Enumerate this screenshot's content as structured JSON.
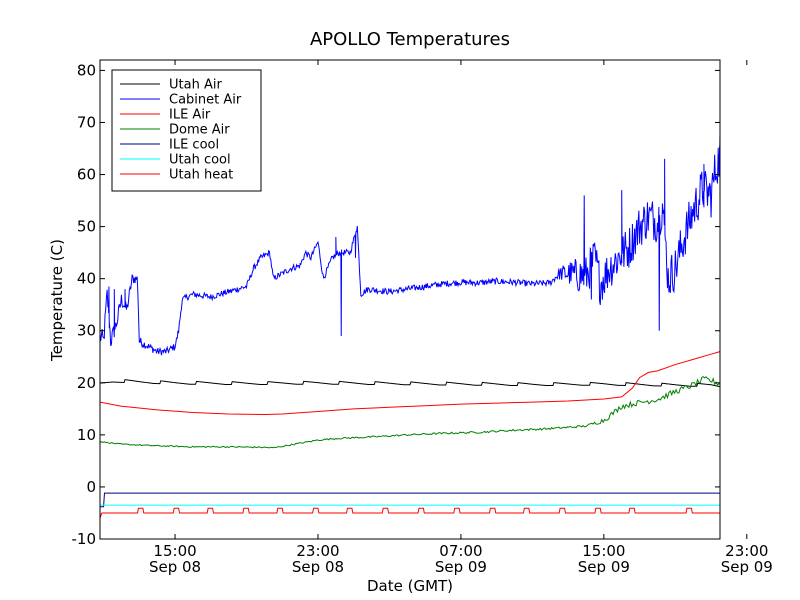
{
  "chart_data": {
    "type": "line",
    "title": "APOLLO Temperatures",
    "xlabel": "Date (GMT)",
    "ylabel": "Temperature (C)",
    "ylim": [
      -10,
      82
    ],
    "xlim_hours": [
      10.8,
      45.5
    ],
    "x_unit": "hours since 2012-09-08 00:00 GMT",
    "grid": false,
    "legend_position": "top-left",
    "y_ticks": [
      -10,
      0,
      10,
      20,
      30,
      40,
      50,
      60,
      70,
      80
    ],
    "x_ticks": [
      {
        "hours": 15,
        "time": "15:00",
        "date": "Sep 08"
      },
      {
        "hours": 23,
        "time": "23:00",
        "date": "Sep 08"
      },
      {
        "hours": 31,
        "time": "07:00",
        "date": "Sep 09"
      },
      {
        "hours": 39,
        "time": "15:00",
        "date": "Sep 09"
      },
      {
        "hours": 47,
        "time": "23:00",
        "date": "Sep 09"
      }
    ],
    "series": [
      {
        "name": "Utah Air",
        "color": "#000000",
        "style": "sawtooth",
        "points": [
          [
            10.8,
            20.2
          ],
          [
            11.5,
            20.4
          ],
          [
            13.0,
            20.2
          ],
          [
            15.0,
            20.0
          ],
          [
            19.0,
            19.9
          ],
          [
            23.0,
            20.0
          ],
          [
            27.0,
            19.9
          ],
          [
            31.0,
            19.8
          ],
          [
            35.0,
            19.7
          ],
          [
            39.0,
            19.8
          ],
          [
            41.0,
            19.7
          ],
          [
            43.0,
            19.6
          ],
          [
            45.0,
            19.6
          ],
          [
            45.5,
            19.4
          ]
        ],
        "teeth_hours": [
          12.2,
          14.2,
          16.2,
          18.2,
          20.2,
          22.2,
          24.2,
          26.2,
          28.2,
          30.2,
          32.2,
          34.2,
          36.2,
          38.2,
          40.2,
          42.2,
          44.2
        ]
      },
      {
        "name": "Cabinet Air",
        "color": "#0000ff",
        "style": "noisy",
        "points": [
          [
            10.8,
            29
          ],
          [
            11.0,
            28
          ],
          [
            11.2,
            37
          ],
          [
            11.4,
            28
          ],
          [
            11.7,
            31
          ],
          [
            12.0,
            36
          ],
          [
            12.3,
            34
          ],
          [
            12.6,
            40
          ],
          [
            12.9,
            40
          ],
          [
            13.0,
            28
          ],
          [
            13.5,
            27
          ],
          [
            14.0,
            26
          ],
          [
            14.5,
            26
          ],
          [
            15.0,
            27
          ],
          [
            15.2,
            30
          ],
          [
            15.4,
            36
          ],
          [
            16.0,
            37
          ],
          [
            17.0,
            36.5
          ],
          [
            18.0,
            37.5
          ],
          [
            19.0,
            38.5
          ],
          [
            19.4,
            42
          ],
          [
            19.8,
            44
          ],
          [
            20.3,
            45
          ],
          [
            20.5,
            40
          ],
          [
            21.0,
            41
          ],
          [
            21.5,
            42
          ],
          [
            22.0,
            42.5
          ],
          [
            22.3,
            45
          ],
          [
            22.6,
            44
          ],
          [
            23.0,
            47
          ],
          [
            23.3,
            40
          ],
          [
            23.8,
            44
          ],
          [
            24.2,
            45
          ],
          [
            24.8,
            45
          ],
          [
            25.2,
            50
          ],
          [
            25.4,
            37
          ],
          [
            25.8,
            38
          ],
          [
            27.0,
            37.5
          ],
          [
            28.0,
            38
          ],
          [
            29.0,
            38.5
          ],
          [
            30.0,
            39
          ],
          [
            31.0,
            39.3
          ],
          [
            32.0,
            39.2
          ],
          [
            33.0,
            39.5
          ],
          [
            34.0,
            39.3
          ],
          [
            35.0,
            39
          ],
          [
            36.0,
            39.2
          ],
          [
            36.5,
            41
          ],
          [
            37.0,
            41
          ],
          [
            38.0,
            40.5
          ],
          [
            38.5,
            44
          ],
          [
            38.8,
            39
          ],
          [
            39.3,
            42
          ],
          [
            39.8,
            44
          ],
          [
            40.4,
            46
          ],
          [
            41.0,
            50
          ],
          [
            41.5,
            52
          ],
          [
            42.0,
            51
          ],
          [
            42.3,
            54
          ],
          [
            42.6,
            40
          ],
          [
            43.0,
            42
          ],
          [
            43.5,
            48
          ],
          [
            44.0,
            53
          ],
          [
            44.5,
            57
          ],
          [
            45.0,
            56
          ],
          [
            45.3,
            62
          ],
          [
            45.6,
            64
          ],
          [
            45.8,
            60
          ],
          [
            46.0,
            59
          ],
          [
            46.2,
            59
          ]
        ],
        "spikes": [
          [
            11.3,
            38.5
          ],
          [
            11.6,
            38
          ],
          [
            12.2,
            38
          ],
          [
            24.0,
            48
          ],
          [
            24.3,
            29
          ],
          [
            25.1,
            44
          ],
          [
            37.9,
            56
          ],
          [
            38.3,
            36
          ],
          [
            40.0,
            57
          ],
          [
            42.1,
            30
          ],
          [
            42.4,
            63
          ],
          [
            44.6,
            62
          ],
          [
            45.5,
            68
          ],
          [
            45.9,
            45
          ]
        ],
        "noise_amp": [
          [
            10.8,
            2.0
          ],
          [
            13.2,
            0.8
          ],
          [
            15.5,
            0.6
          ],
          [
            25.5,
            0.6
          ],
          [
            36.2,
            0.6
          ],
          [
            37.8,
            4.0
          ],
          [
            46.2,
            4.5
          ]
        ]
      },
      {
        "name": "ILE Air",
        "color": "#ff0000",
        "style": "smooth",
        "points": [
          [
            10.8,
            16.3
          ],
          [
            12.0,
            15.5
          ],
          [
            14.0,
            14.8
          ],
          [
            16.0,
            14.3
          ],
          [
            18.0,
            14.0
          ],
          [
            20.0,
            13.9
          ],
          [
            21.0,
            14.0
          ],
          [
            23.0,
            14.5
          ],
          [
            25.0,
            15.0
          ],
          [
            27.0,
            15.3
          ],
          [
            29.0,
            15.6
          ],
          [
            31.0,
            15.9
          ],
          [
            33.0,
            16.1
          ],
          [
            35.0,
            16.3
          ],
          [
            37.0,
            16.5
          ],
          [
            39.0,
            16.9
          ],
          [
            40.0,
            17.3
          ],
          [
            40.6,
            19
          ],
          [
            41.0,
            21
          ],
          [
            41.5,
            22
          ],
          [
            42.0,
            22.3
          ],
          [
            43.0,
            23.5
          ],
          [
            44.0,
            24.5
          ],
          [
            45.0,
            25.5
          ],
          [
            45.8,
            26.3
          ],
          [
            46.2,
            26.3
          ]
        ]
      },
      {
        "name": "Dome Air",
        "color": "#008000",
        "style": "noisy-small",
        "points": [
          [
            10.8,
            8.7
          ],
          [
            12.0,
            8.2
          ],
          [
            14.0,
            7.9
          ],
          [
            16.0,
            7.7
          ],
          [
            18.0,
            7.7
          ],
          [
            20.0,
            7.6
          ],
          [
            20.5,
            7.5
          ],
          [
            22.0,
            8.4
          ],
          [
            23.0,
            9.0
          ],
          [
            24.0,
            9.3
          ],
          [
            26.0,
            9.6
          ],
          [
            28.0,
            10.0
          ],
          [
            30.0,
            10.3
          ],
          [
            32.0,
            10.5
          ],
          [
            34.0,
            10.9
          ],
          [
            36.0,
            11.2
          ],
          [
            38.0,
            11.7
          ],
          [
            39.0,
            12.8
          ],
          [
            40.0,
            15.5
          ],
          [
            41.0,
            16.2
          ],
          [
            42.0,
            16.8
          ],
          [
            43.0,
            18.3
          ],
          [
            44.0,
            19.6
          ],
          [
            44.6,
            20.7
          ],
          [
            45.0,
            20.4
          ],
          [
            45.5,
            19.8
          ],
          [
            46.0,
            18.8
          ],
          [
            46.2,
            17.8
          ]
        ],
        "noise_amp": [
          [
            10.8,
            0.1
          ],
          [
            38.0,
            0.2
          ],
          [
            39.0,
            0.5
          ],
          [
            46.2,
            0.6
          ]
        ]
      },
      {
        "name": "ILE cool",
        "color": "#000080",
        "style": "step",
        "points": [
          [
            10.8,
            -3.8
          ],
          [
            11.0,
            -3.8
          ],
          [
            11.05,
            -1.2
          ],
          [
            46.2,
            -1.2
          ]
        ]
      },
      {
        "name": "Utah cool",
        "color": "#00ffff",
        "style": "flat",
        "points": [
          [
            10.8,
            -3.5
          ],
          [
            46.2,
            -3.5
          ]
        ]
      },
      {
        "name": "Utah heat",
        "color": "#ff0000",
        "style": "pulses",
        "base": -5.0,
        "pulse_height": -4.1,
        "points": [
          [
            10.8,
            -6.0
          ],
          [
            10.9,
            -5.0
          ],
          [
            46.2,
            -5.0
          ]
        ],
        "pulse_hours": [
          12.9,
          14.9,
          16.8,
          18.8,
          20.7,
          22.7,
          24.6,
          26.6,
          28.6,
          30.6,
          32.6,
          34.5,
          36.5,
          38.5,
          40.4,
          43.6
        ]
      }
    ]
  }
}
